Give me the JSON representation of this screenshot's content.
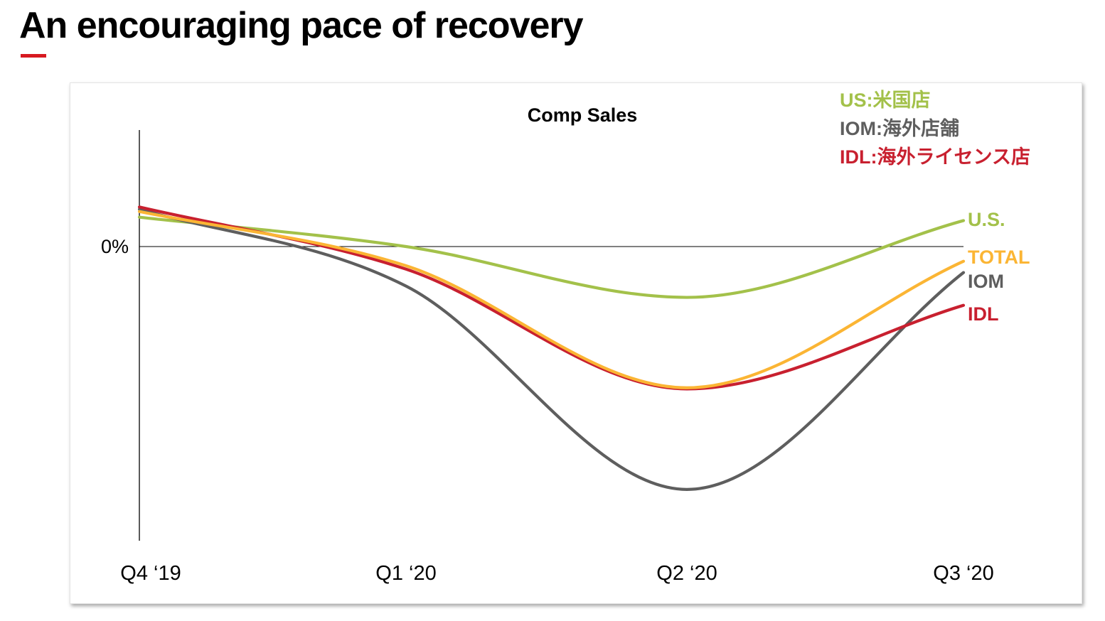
{
  "page": {
    "title": "An encouraging pace of recovery",
    "accent_color": "#d71920"
  },
  "chart_data": {
    "type": "line",
    "title": "Comp Sales",
    "xlabel": "",
    "ylabel": "",
    "categories": [
      "Q4 ‘19",
      "Q1 ‘20",
      "Q2 ‘20",
      "Q3 ‘20"
    ],
    "y_tick_labels": [
      "0%"
    ],
    "y_reference": 0,
    "ylim": [
      -22,
      7
    ],
    "grid": false,
    "legend": {
      "placement": "top-right",
      "entries": [
        {
          "label": "US:米国店",
          "color": "#a3c14a"
        },
        {
          "label": "IOM:海外店舗",
          "color": "#5e5e5e"
        },
        {
          "label": "IDL:海外ライセンス店",
          "color": "#c8202f"
        }
      ]
    },
    "series": [
      {
        "name": "U.S.",
        "label": "U.S.",
        "color": "#a3c14a",
        "values": [
          2.6,
          0.0,
          -4.5,
          2.3
        ]
      },
      {
        "name": "IOM",
        "label": "IOM",
        "color": "#5e5e5e",
        "values": [
          3.3,
          -3.5,
          -21.5,
          -2.3
        ]
      },
      {
        "name": "IDL",
        "label": "IDL",
        "color": "#c8202f",
        "values": [
          3.5,
          -2.0,
          -12.6,
          -5.2
        ]
      },
      {
        "name": "TOTAL",
        "label": "TOTAL",
        "color": "#fbb534",
        "values": [
          3.1,
          -1.7,
          -12.5,
          -1.3
        ]
      }
    ]
  }
}
